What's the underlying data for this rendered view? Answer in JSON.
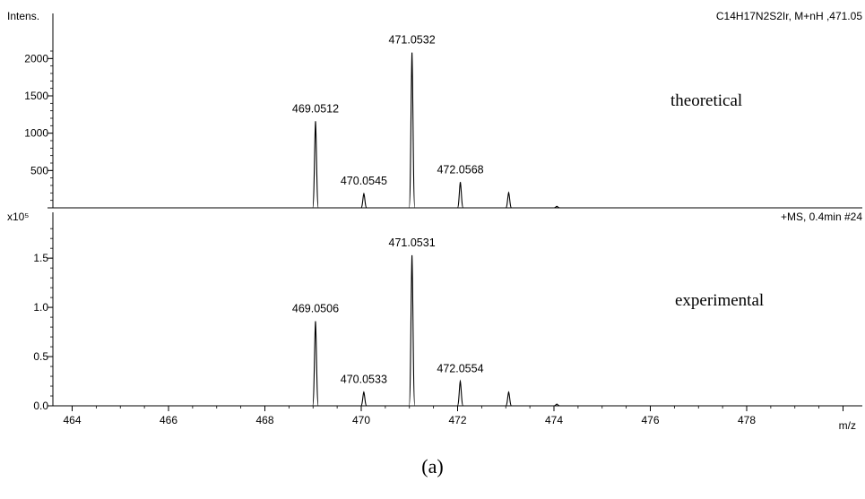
{
  "chart_data": [
    {
      "type": "line",
      "ylabel": "Intens.",
      "info": "C14H17N2S2Ir, M+nH ,471.05",
      "annotation": "theoretical",
      "xlim": [
        463.6,
        480.4
      ],
      "ylim": [
        0,
        2100
      ],
      "yticks": [
        0,
        500,
        1000,
        1500,
        2000
      ],
      "ytick_labels": [
        "",
        "500",
        "1000",
        "1500",
        "2000"
      ],
      "peaks": [
        {
          "x": 469.0512,
          "y": 1160,
          "label": "469.0512"
        },
        {
          "x": 470.0545,
          "y": 190,
          "label": "470.0545"
        },
        {
          "x": 471.0532,
          "y": 2080,
          "label": "471.0532"
        },
        {
          "x": 472.0568,
          "y": 345,
          "label": "472.0568"
        },
        {
          "x": 473.06,
          "y": 205,
          "label": ""
        },
        {
          "x": 474.06,
          "y": 20,
          "label": ""
        }
      ]
    },
    {
      "type": "line",
      "ylabel": "x10⁵",
      "info": "+MS, 0.4min #24",
      "annotation": "experimental",
      "xlabel": "m/z",
      "xlim": [
        463.6,
        480.4
      ],
      "ylim": [
        0,
        1.82
      ],
      "xticks": [
        464,
        466,
        468,
        470,
        472,
        474,
        476,
        478
      ],
      "xtick_labels": [
        "464",
        "466",
        "468",
        "470",
        "472",
        "474",
        "476",
        "478"
      ],
      "yticks": [
        0,
        0.5,
        1.0,
        1.5
      ],
      "ytick_labels": [
        "0.0",
        "0.5",
        "1.0",
        "1.5"
      ],
      "peaks": [
        {
          "x": 469.0506,
          "y": 0.86,
          "label": "469.0506"
        },
        {
          "x": 470.0533,
          "y": 0.14,
          "label": "470.0533"
        },
        {
          "x": 471.0531,
          "y": 1.53,
          "label": "471.0531"
        },
        {
          "x": 472.0554,
          "y": 0.25,
          "label": "472.0554"
        },
        {
          "x": 473.06,
          "y": 0.14,
          "label": ""
        },
        {
          "x": 474.06,
          "y": 0.018,
          "label": ""
        }
      ]
    }
  ],
  "caption": "(a)"
}
